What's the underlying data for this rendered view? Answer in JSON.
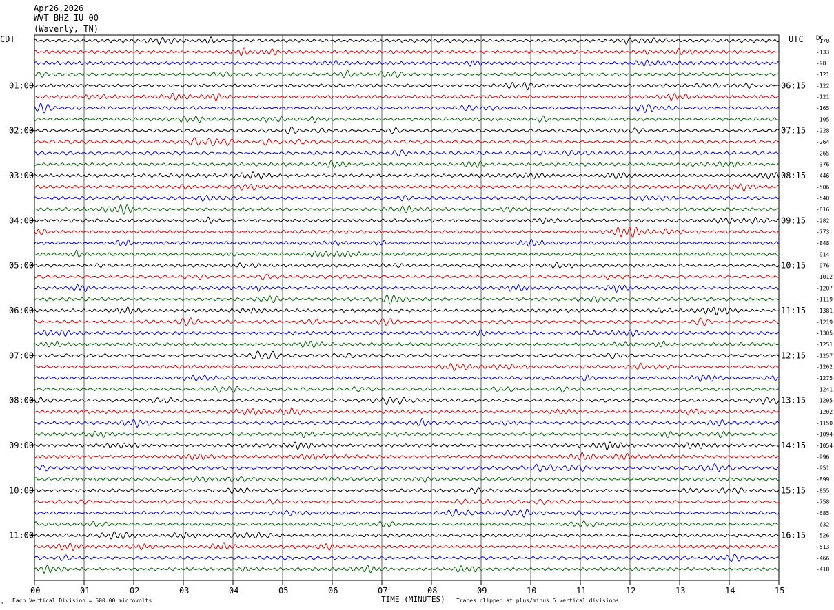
{
  "header": {
    "date": "Apr26,2026",
    "station": "WVT BHZ IU 00",
    "location": "(Waverly, TN)"
  },
  "left_axis_label": "CDT",
  "right_axis_label": "UTC",
  "dc_label": "DC",
  "footer": {
    "scale_note": "Each Vertical Division =  500.00 microvolts",
    "clip_note": "Traces clipped at plus/minus 5 vertical divisions",
    "xlabel": "TIME (MINUTES)"
  },
  "colors": {
    "trace_cycle": [
      "#000000",
      "#e00000",
      "#0000e0",
      "#006400"
    ],
    "grid": "#000000"
  },
  "chart_data": {
    "type": "line",
    "title": "",
    "xlabel": "TIME (MINUTES)",
    "xlim": [
      0,
      15
    ],
    "x_ticks": [
      "00",
      "01",
      "02",
      "03",
      "04",
      "05",
      "06",
      "07",
      "08",
      "09",
      "10",
      "11",
      "12",
      "13",
      "14",
      "15"
    ],
    "left_hour_labels": [
      "01:00",
      "02:00",
      "03:00",
      "04:00",
      "05:00",
      "06:00",
      "07:00",
      "08:00",
      "09:00",
      "10:00",
      "11:00"
    ],
    "right_hour_labels": [
      "06:15",
      "07:15",
      "08:15",
      "09:15",
      "10:15",
      "11:15",
      "12:15",
      "13:15",
      "14:15",
      "15:15",
      "16:15"
    ],
    "trace_count": 48,
    "dc_offsets": [
      "-170",
      "-133",
      "-98",
      "-121",
      "-122",
      "-121",
      "-165",
      "-195",
      "-228",
      "-264",
      "-265",
      "-376",
      "-446",
      "-506",
      "-540",
      "-616",
      "-282",
      "-773",
      "-848",
      "-914",
      "-976",
      "-1012",
      "-1207",
      "-1119",
      "-1381",
      "-1219",
      "-1305",
      "-1251",
      "-1257",
      "-1262",
      "-1275",
      "-1241",
      "-1205",
      "-1202",
      "-1150",
      "-1094",
      "-1054",
      "-996",
      "-951",
      "-899",
      "-855",
      "-758",
      "-685",
      "-632",
      "-526",
      "-513",
      "-466",
      "-418"
    ]
  }
}
